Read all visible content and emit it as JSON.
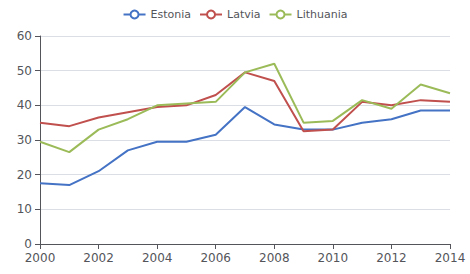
{
  "chart_data": {
    "type": "line",
    "x": [
      2000,
      2001,
      2002,
      2003,
      2004,
      2005,
      2006,
      2007,
      2008,
      2009,
      2010,
      2011,
      2012,
      2013,
      2014
    ],
    "series": [
      {
        "name": "Estonia",
        "color": "#4472C4",
        "values": [
          17.5,
          17,
          21,
          27,
          29.5,
          29.5,
          31.5,
          39.5,
          34.5,
          33,
          33,
          35,
          36,
          38.5,
          38.5
        ]
      },
      {
        "name": "Latvia",
        "color": "#C0504D",
        "values": [
          35,
          34,
          36.5,
          38,
          39.5,
          40,
          43,
          49.5,
          47,
          32.5,
          33,
          41,
          40,
          41.5,
          41
        ]
      },
      {
        "name": "Lithuania",
        "color": "#9BBB59",
        "values": [
          29.5,
          26.5,
          33,
          36,
          40,
          40.5,
          41,
          49.5,
          52,
          35,
          35.5,
          41.5,
          39,
          46,
          43.5
        ]
      }
    ],
    "xlim": [
      2000,
      2014
    ],
    "xticks": [
      2000,
      2002,
      2004,
      2006,
      2008,
      2010,
      2012,
      2014
    ],
    "ylim": [
      0,
      60
    ],
    "yticks": [
      0,
      10,
      20,
      30,
      40,
      50,
      60
    ],
    "grid": true,
    "legend": "top"
  }
}
